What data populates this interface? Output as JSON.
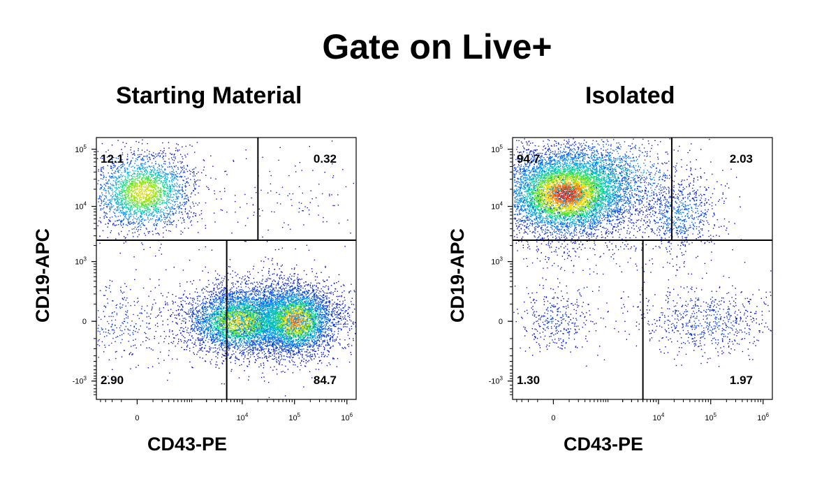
{
  "title": "Gate on Live+",
  "chart_data": [
    {
      "type": "scatter",
      "title": "Starting Material",
      "xlabel": "CD43-PE",
      "ylabel": "CD19-APC",
      "x_scale": "biexponential",
      "y_scale": "biexponential",
      "x_ticks": [
        {
          "value": 0,
          "label": "0"
        },
        {
          "value": 10000,
          "base": "10",
          "exp": "4"
        },
        {
          "value": 100000,
          "base": "10",
          "exp": "5"
        },
        {
          "value": 1000000,
          "base": "10",
          "exp": "6"
        }
      ],
      "y_ticks": [
        {
          "value": -1000,
          "base": "-10",
          "exp": "3"
        },
        {
          "value": 0,
          "label": "0"
        },
        {
          "value": 1000,
          "base": "10",
          "exp": "3"
        },
        {
          "value": 10000,
          "base": "10",
          "exp": "4"
        },
        {
          "value": 100000,
          "base": "10",
          "exp": "5"
        }
      ],
      "gates": {
        "y_threshold": 2500,
        "upper_x_threshold": 20000,
        "lower_x_threshold": 5000
      },
      "quadrant_percentages": {
        "upper_left": "12.1",
        "upper_right": "0.32",
        "lower_left": "2.90",
        "lower_right": "84.7"
      },
      "populations": [
        {
          "center_x": 0,
          "center_y": 18000,
          "note": "CD19+ CD43- cluster"
        },
        {
          "center_x": 10000,
          "center_y": 0,
          "note": "CD43+ cluster"
        },
        {
          "center_x": 100000,
          "center_y": 0,
          "note": "CD43 high cluster"
        }
      ]
    },
    {
      "type": "scatter",
      "title": "Isolated",
      "xlabel": "CD43-PE",
      "ylabel": "CD19-APC",
      "x_scale": "biexponential",
      "y_scale": "biexponential",
      "x_ticks": [
        {
          "value": 0,
          "label": "0"
        },
        {
          "value": 10000,
          "base": "10",
          "exp": "4"
        },
        {
          "value": 100000,
          "base": "10",
          "exp": "5"
        },
        {
          "value": 1000000,
          "base": "10",
          "exp": "6"
        }
      ],
      "y_ticks": [
        {
          "value": -1000,
          "base": "-10",
          "exp": "3"
        },
        {
          "value": 0,
          "label": "0"
        },
        {
          "value": 1000,
          "base": "10",
          "exp": "3"
        },
        {
          "value": 10000,
          "base": "10",
          "exp": "4"
        },
        {
          "value": 100000,
          "base": "10",
          "exp": "5"
        }
      ],
      "gates": {
        "y_threshold": 2500,
        "upper_x_threshold": 18000,
        "lower_x_threshold": 5000
      },
      "quadrant_percentages": {
        "upper_left": "94.7",
        "upper_right": "2.03",
        "lower_left": "1.30",
        "lower_right": "1.97"
      },
      "populations": [
        {
          "center_x": 0,
          "center_y": 17000,
          "note": "CD19+ B-cell cluster"
        },
        {
          "center_x": 25000,
          "center_y": 8000,
          "note": "minor CD19+ CD43+ cluster"
        },
        {
          "center_x": 0,
          "center_y": 0,
          "note": "minor double negative"
        },
        {
          "center_x": 80000,
          "center_y": 0,
          "note": "minor CD43+ cluster"
        }
      ]
    }
  ]
}
